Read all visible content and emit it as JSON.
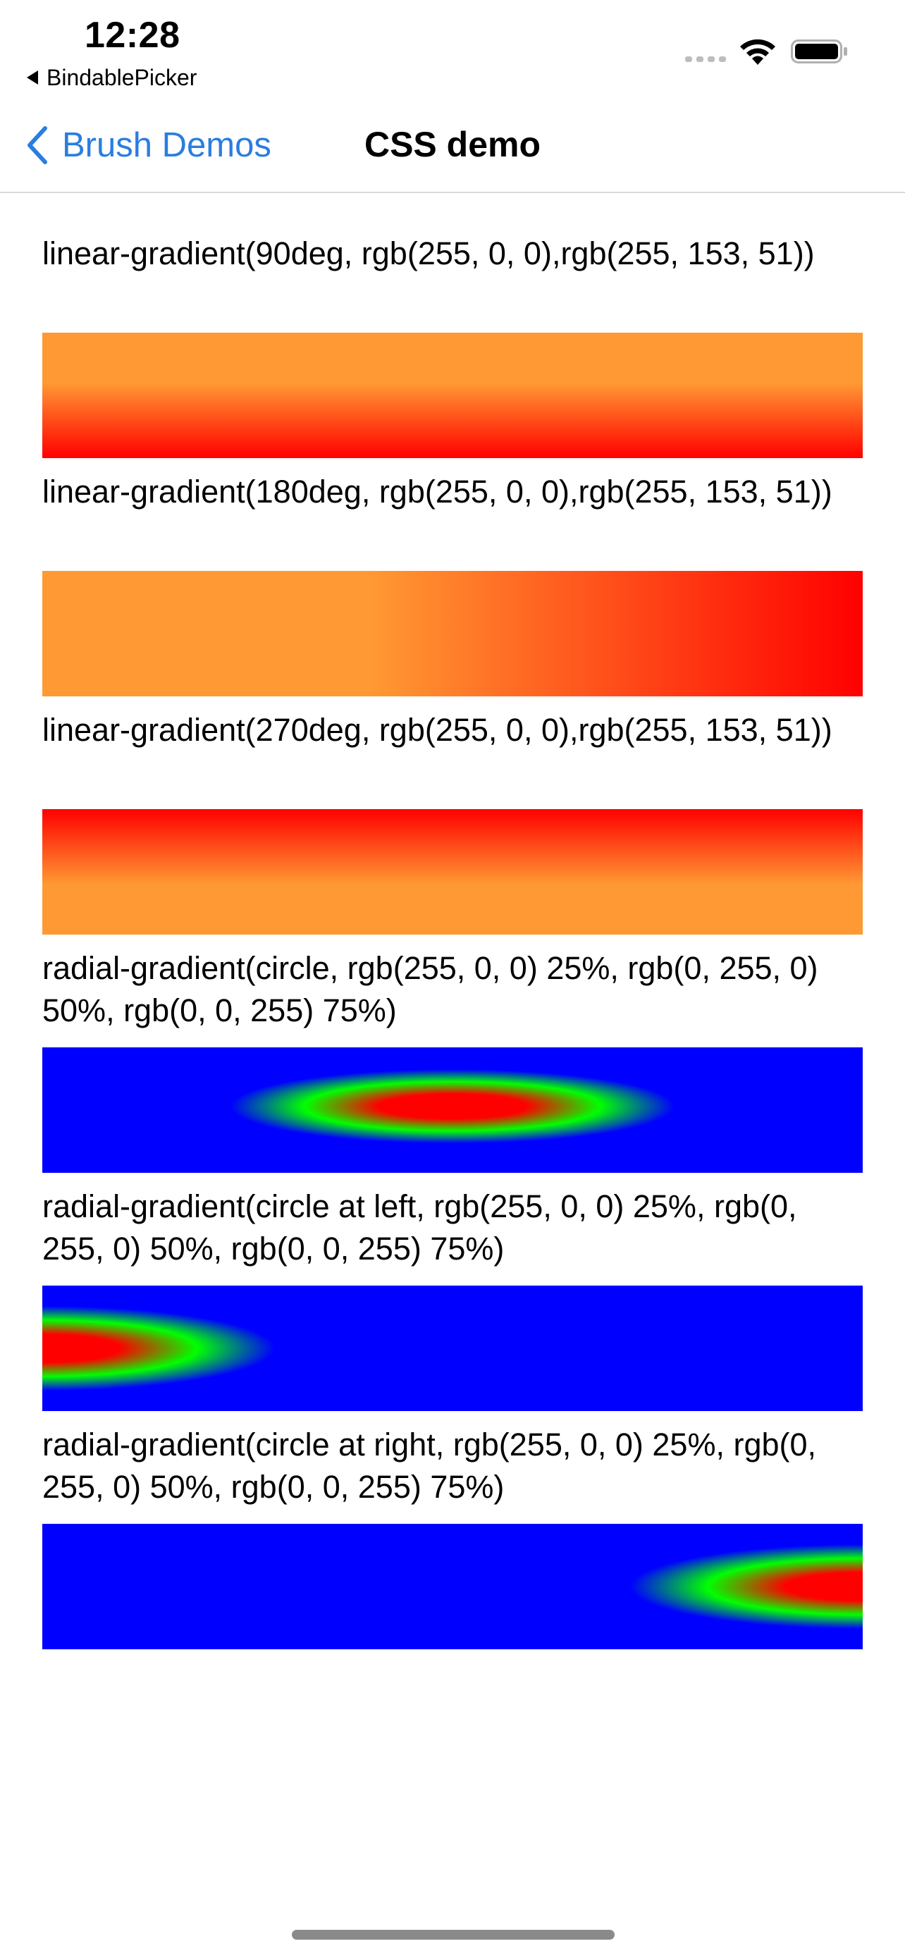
{
  "status_bar": {
    "time": "12:28",
    "back_app_label": "BindablePicker"
  },
  "nav": {
    "back_label": "Brush Demos",
    "title": "CSS demo"
  },
  "demos": [
    {
      "label": "linear-gradient(90deg, rgb(255, 0, 0),rgb(255, 153, 51))"
    },
    {
      "label": "linear-gradient(180deg, rgb(255, 0, 0),rgb(255, 153, 51))"
    },
    {
      "label": "linear-gradient(270deg, rgb(255, 0, 0),rgb(255, 153, 51))"
    },
    {
      "label": "radial-gradient(circle, rgb(255, 0, 0) 25%, rgb(0, 255, 0) 50%, rgb(0, 0, 255) 75%)"
    },
    {
      "label": "radial-gradient(circle at left, rgb(255, 0, 0) 25%, rgb(0, 255, 0) 50%, rgb(0, 0, 255) 75%)"
    },
    {
      "label": "radial-gradient(circle at right, rgb(255, 0, 0) 25%, rgb(0, 255, 0) 50%, rgb(0, 0, 255) 75%)"
    }
  ],
  "colors": {
    "accent": "#2a7de1",
    "red": "#ff0000",
    "orange": "#ff9933",
    "green": "#00ff00",
    "blue": "#0000ff"
  }
}
